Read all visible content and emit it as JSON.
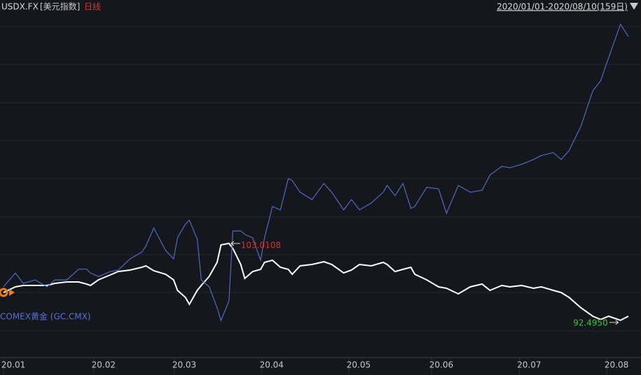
{
  "chart_data": {
    "type": "line",
    "title": "USDX.FX",
    "subtitle": "[美元指数]",
    "period": "日线",
    "range_label": "2020/01/01-2020/08/10(159日)",
    "max_label": "103.0108",
    "min_label": "92.4950",
    "x": [
      0,
      3,
      5,
      8,
      11,
      13,
      16,
      19,
      21,
      22,
      24,
      27,
      29,
      32,
      35,
      36,
      38,
      41,
      43,
      44,
      46,
      47,
      49,
      50,
      52,
      54,
      55,
      57,
      58,
      60,
      61,
      63,
      65,
      66,
      68,
      70,
      72,
      73,
      75,
      78,
      81,
      83,
      86,
      88,
      90,
      93,
      96,
      97,
      99,
      101,
      103,
      104,
      107,
      110,
      112,
      115,
      118,
      121,
      123,
      126,
      128,
      131,
      134,
      136,
      139,
      141,
      143,
      146,
      149,
      151,
      153,
      156,
      158
    ],
    "xlim": [
      0,
      158
    ],
    "xticks": [
      {
        "value": 2.5,
        "label": "20.01"
      },
      {
        "value": 25.3,
        "label": "20.02"
      },
      {
        "value": 45.7,
        "label": "20.03"
      },
      {
        "value": 67.8,
        "label": "20.04"
      },
      {
        "value": 89.8,
        "label": "20.05"
      },
      {
        "value": 110.7,
        "label": "20.06"
      },
      {
        "value": 132.9,
        "label": "20.07"
      },
      {
        "value": 155,
        "label": "20.08"
      }
    ],
    "ylim": [
      87.5,
      134.4
    ],
    "y2lim": [
      1384,
      2084
    ],
    "series": [
      {
        "color": "#ffffff",
        "values": [
          96.3,
          97.07,
          97.26,
          97.26,
          97.26,
          97.55,
          97.74,
          97.74,
          97.45,
          97.26,
          98.03,
          98.7,
          99.17,
          99.37,
          99.75,
          99.94,
          99.27,
          98.79,
          98.03,
          96.59,
          95.63,
          94.68,
          96.59,
          97.26,
          98.5,
          100.42,
          102.81,
          103.0108,
          102.33,
          100.13,
          98.22,
          99.17,
          99.46,
          100.42,
          100.71,
          99.75,
          99.46,
          98.79,
          99.94,
          100.13,
          100.51,
          100.13,
          98.98,
          99.37,
          100.13,
          99.94,
          100.42,
          100.13,
          99.17,
          99.46,
          99.75,
          98.79,
          98.03,
          97.07,
          96.88,
          96.11,
          97.07,
          97.45,
          96.59,
          97.26,
          97.07,
          97.26,
          96.88,
          97.07,
          96.59,
          96.3,
          95.63,
          94.2,
          93.05,
          92.6,
          93.05,
          92.495,
          93.05
        ]
      },
      {
        "name": "COMEX黄金 (GC.CMX)",
        "color": "#5468c4",
        "axis": "y2",
        "values": [
          1527,
          1555,
          1534,
          1541,
          1527,
          1541,
          1541,
          1563,
          1563,
          1555,
          1548,
          1558,
          1561,
          1584,
          1598,
          1610,
          1647,
          1601,
          1584,
          1627,
          1655,
          1663,
          1624,
          1541,
          1527,
          1484,
          1458,
          1498,
          1641,
          1641,
          1634,
          1627,
          1581,
          1627,
          1691,
          1684,
          1748,
          1744,
          1720,
          1705,
          1738,
          1720,
          1684,
          1705,
          1684,
          1698,
          1720,
          1734,
          1713,
          1738,
          1687,
          1691,
          1730,
          1727,
          1677,
          1734,
          1720,
          1724,
          1755,
          1773,
          1770,
          1777,
          1787,
          1795,
          1801,
          1787,
          1805,
          1855,
          1927,
          1948,
          1995,
          2063,
          2038
        ]
      }
    ]
  }
}
